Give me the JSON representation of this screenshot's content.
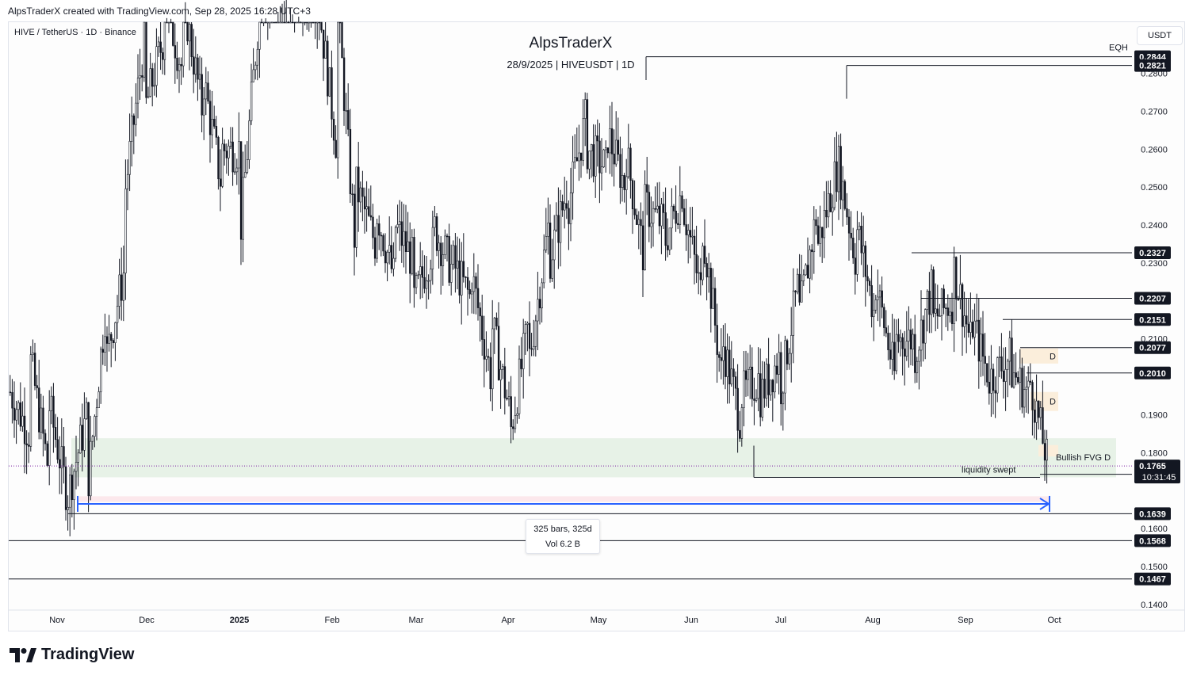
{
  "header": {
    "attribution": "AlpsTraderX created with TradingView.com, Sep 28, 2025 16:28 UTC+3",
    "symbol_line": "HIVE / TetherUS · 1D · Binance",
    "currency_button": "USDT",
    "title": "AlpsTraderX",
    "subtitle": "28/9/2025 | HIVEUSDT | 1D"
  },
  "brand": {
    "name": "TradingView"
  },
  "measure": {
    "line1": "325 bars, 325d",
    "line2": "Vol 6.2 B"
  },
  "labels": {
    "eqh": "EQH",
    "liquidity": "liquidity swept",
    "fvg": "Bullish FVG D",
    "d1": "D",
    "d2": "D",
    "countdown": "10:31:45"
  },
  "chart_data": {
    "type": "candlestick",
    "symbol": "HIVEUSDT",
    "timeframe": "1D",
    "x_ticks": [
      "Nov",
      "Dec",
      "2025",
      "Feb",
      "Mar",
      "Apr",
      "May",
      "Jun",
      "Jul",
      "Aug",
      "Sep",
      "Oct"
    ],
    "y_ticks": [
      "0.2800",
      "0.2700",
      "0.2600",
      "0.2500",
      "0.2400",
      "0.2300",
      "0.2100",
      "0.1900",
      "0.1800",
      "0.1600",
      "0.1500",
      "0.1400"
    ],
    "ylim": [
      0.1385,
      0.2935
    ],
    "current_price": "0.1765",
    "price_levels": [
      {
        "value": "0.2844",
        "type": "high"
      },
      {
        "value": "0.2821",
        "type": "high"
      },
      {
        "value": "0.2327",
        "type": "high"
      },
      {
        "value": "0.2207",
        "type": "high"
      },
      {
        "value": "0.2151",
        "type": "high"
      },
      {
        "value": "0.2077",
        "type": "high"
      },
      {
        "value": "0.2010",
        "type": "high"
      },
      {
        "value": "0.1743",
        "type": "low"
      },
      {
        "value": "0.1639",
        "type": "low"
      },
      {
        "value": "0.1568",
        "type": "low"
      },
      {
        "value": "0.1467",
        "type": "low"
      }
    ],
    "zones": [
      {
        "name": "demand zone",
        "from": 0.1735,
        "to": 0.1838,
        "color": "#e3f0e3"
      }
    ],
    "colors": {
      "candle": "#131722",
      "measure": "#2962ff",
      "zone": "#e3f0e3",
      "fvg": "#fbeedb"
    },
    "trajectory": [
      [
        0.196,
        0.2
      ],
      [
        0.206,
        0.185
      ],
      [
        0.193,
        0.175
      ],
      [
        0.169,
        0.168
      ],
      [
        0.17,
        0.19
      ],
      [
        0.205,
        0.22
      ],
      [
        0.25,
        0.23
      ],
      [
        0.27,
        0.29
      ],
      [
        0.3,
        0.29
      ],
      [
        0.3,
        0.28
      ],
      [
        0.28,
        0.27
      ],
      [
        0.26,
        0.25
      ],
      [
        0.24,
        0.26
      ],
      [
        0.3,
        0.3
      ],
      [
        0.3,
        0.3
      ],
      [
        0.3,
        0.3
      ],
      [
        0.3,
        0.3
      ],
      [
        0.3,
        0.26
      ],
      [
        0.25,
        0.23
      ],
      [
        0.245,
        0.235
      ],
      [
        0.24,
        0.225
      ],
      [
        0.22,
        0.23
      ],
      [
        0.24,
        0.235
      ],
      [
        0.23,
        0.228
      ],
      [
        0.227,
        0.22
      ],
      [
        0.215,
        0.2
      ],
      [
        0.185,
        0.19
      ],
      [
        0.205,
        0.215
      ],
      [
        0.23,
        0.24
      ],
      [
        0.245,
        0.25
      ],
      [
        0.26,
        0.27
      ],
      [
        0.265,
        0.255
      ],
      [
        0.26,
        0.25
      ],
      [
        0.245,
        0.23
      ],
      [
        0.235,
        0.24
      ],
      [
        0.245,
        0.25
      ],
      [
        0.24,
        0.22
      ],
      [
        0.21,
        0.2
      ],
      [
        0.195,
        0.188
      ],
      [
        0.195,
        0.2
      ],
      [
        0.195,
        0.205
      ],
      [
        0.215,
        0.225
      ],
      [
        0.235,
        0.245
      ],
      [
        0.258,
        0.255
      ],
      [
        0.24,
        0.23
      ],
      [
        0.225,
        0.215
      ],
      [
        0.21,
        0.2
      ],
      [
        0.205,
        0.21
      ],
      [
        0.215,
        0.225
      ],
      [
        0.23,
        0.22
      ],
      [
        0.215,
        0.208
      ],
      [
        0.2,
        0.198
      ],
      [
        0.202,
        0.205
      ],
      [
        0.2,
        0.195
      ],
      [
        0.19,
        0.176
      ]
    ]
  }
}
